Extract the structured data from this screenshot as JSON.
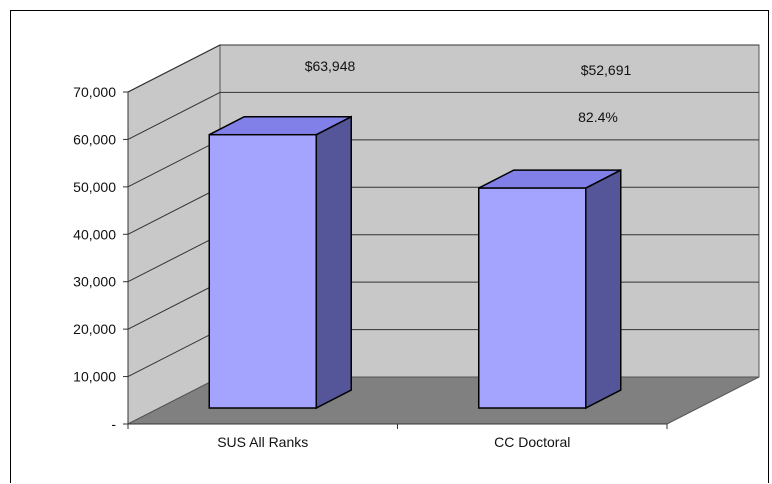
{
  "chart_data": {
    "type": "bar",
    "categories": [
      "SUS All Ranks",
      "CC Doctoral"
    ],
    "values": [
      63948,
      52691
    ],
    "value_labels": [
      "$63,948",
      "$52,691"
    ],
    "annotations": [
      "82.4%"
    ],
    "ylim": [
      0,
      70000
    ],
    "y_ticks": [
      0,
      10000,
      20000,
      30000,
      40000,
      50000,
      60000,
      70000
    ],
    "y_tick_labels": [
      "-",
      "10,000",
      "20,000",
      "30,000",
      "40,000",
      "50,000",
      "60,000",
      "70,000"
    ],
    "style": "3d",
    "grid": true,
    "legend": "none",
    "colors": {
      "bar_front": "#a4a4ff",
      "bar_side": "#555599",
      "bar_top": "#8080e8",
      "wall": "#c8c8c8",
      "floor": "#808080"
    }
  }
}
